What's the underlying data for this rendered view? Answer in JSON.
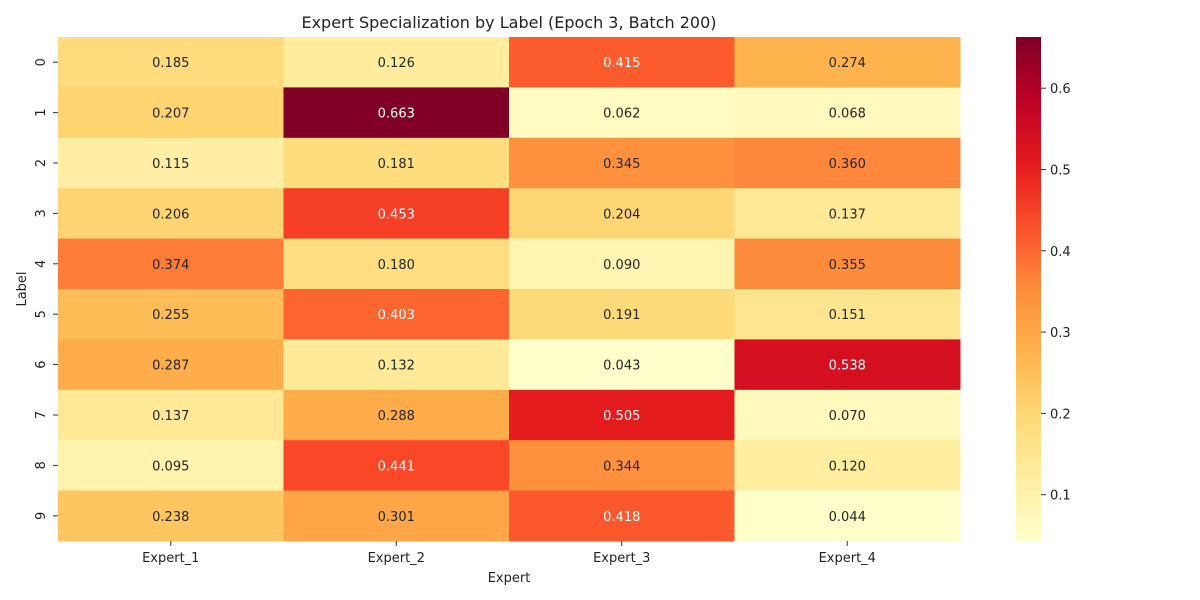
{
  "chart_data": {
    "type": "heatmap",
    "title": "Expert Specialization by Label (Epoch 3, Batch 200)",
    "xlabel": "Expert",
    "ylabel": "Label",
    "columns": [
      "Expert_1",
      "Expert_2",
      "Expert_3",
      "Expert_4"
    ],
    "rows": [
      "0",
      "1",
      "2",
      "3",
      "4",
      "5",
      "6",
      "7",
      "8",
      "9"
    ],
    "values": [
      [
        0.185,
        0.126,
        0.415,
        0.274
      ],
      [
        0.207,
        0.663,
        0.062,
        0.068
      ],
      [
        0.115,
        0.181,
        0.345,
        0.36
      ],
      [
        0.206,
        0.453,
        0.204,
        0.137
      ],
      [
        0.374,
        0.18,
        0.09,
        0.355
      ],
      [
        0.255,
        0.403,
        0.191,
        0.151
      ],
      [
        0.287,
        0.132,
        0.043,
        0.538
      ],
      [
        0.137,
        0.288,
        0.505,
        0.07
      ],
      [
        0.095,
        0.441,
        0.344,
        0.12
      ],
      [
        0.238,
        0.301,
        0.418,
        0.044
      ]
    ],
    "value_format": "3 decimals",
    "colormap": "YlOrRd",
    "color_range": [
      0.043,
      0.663
    ],
    "colorbar_ticks": [
      0.1,
      0.2,
      0.3,
      0.4,
      0.5,
      0.6
    ],
    "colorbar_tick_labels": [
      "0.1",
      "0.2",
      "0.3",
      "0.4",
      "0.5",
      "0.6"
    ]
  }
}
